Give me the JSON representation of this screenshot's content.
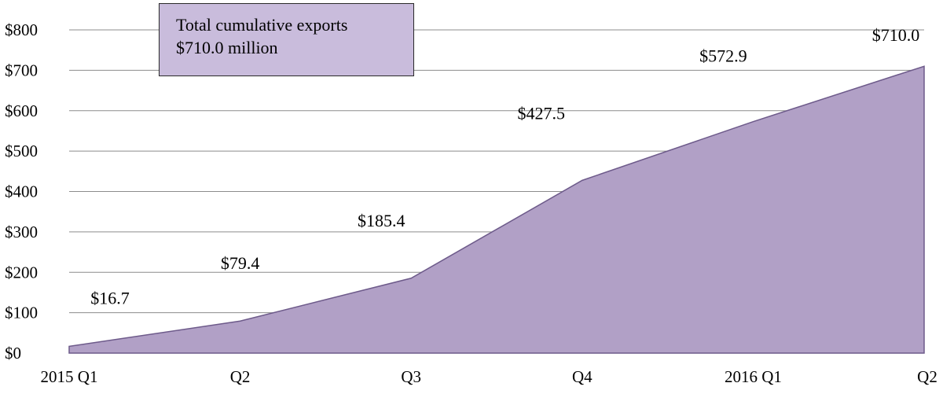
{
  "chart_data": {
    "type": "area",
    "categories": [
      "2015 Q1",
      "Q2",
      "Q3",
      "Q4",
      "2016 Q1",
      "Q2"
    ],
    "values": [
      16.7,
      79.4,
      185.4,
      427.5,
      572.9,
      710.0
    ],
    "data_labels": [
      "$16.7",
      "$79.4",
      "$185.4",
      "$427.5",
      "$572.9",
      "$710.0"
    ],
    "y_ticks": [
      "$0",
      "$100",
      "$200",
      "$300",
      "$400",
      "$500",
      "$600",
      "$700",
      "$800"
    ],
    "ylim": [
      0,
      800
    ],
    "grid": true,
    "legend": "none",
    "fill_color": "#b1a0c6",
    "line_color": "#6d5a8a",
    "grid_color": "#8c8c8c"
  },
  "annotation": {
    "line1": "Total cumulative exports",
    "line2": "$710.0 million",
    "background": "#c9bcdc"
  }
}
